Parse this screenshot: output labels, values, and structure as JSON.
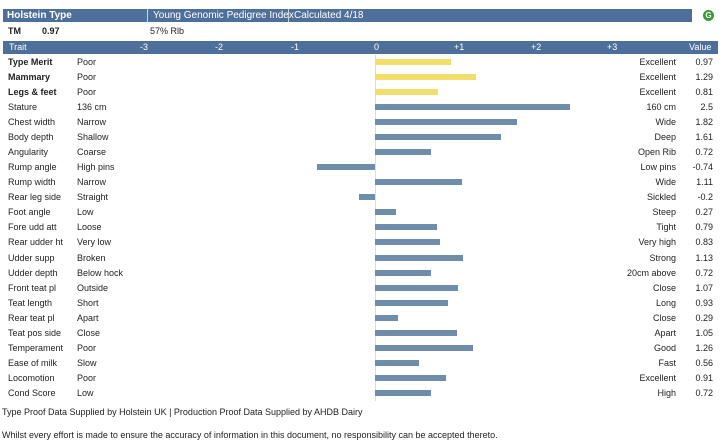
{
  "title_bar": {
    "breed": "Holstein Type",
    "index": "Young Genomic Pedigree Index",
    "calculated": "Calculated 4/18",
    "status_icon_glyph": "G",
    "status_icon": "genomic-status-icon"
  },
  "summary": {
    "label": "TM",
    "value": "0.97",
    "reliability": "57% Rlb"
  },
  "header": {
    "trait": "Trait",
    "value": "Value",
    "ticks": [
      "-3",
      "-2",
      "-1",
      "0",
      "+1",
      "+2",
      "+3"
    ]
  },
  "scale": {
    "min": -3,
    "max": 3
  },
  "traits": [
    {
      "name": "Type Merit",
      "low": "Poor",
      "high": "Excellent",
      "value": "0.97",
      "bold": true,
      "color": "#f2de68"
    },
    {
      "name": "Mammary",
      "low": "Poor",
      "high": "Excellent",
      "value": "1.29",
      "bold": true,
      "color": "#f2de68"
    },
    {
      "name": "Legs & feet",
      "low": "Poor",
      "high": "Excellent",
      "value": "0.81",
      "bold": true,
      "color": "#f2de68"
    },
    {
      "name": "Stature",
      "low": "136 cm",
      "high": "160 cm",
      "value": "2.5"
    },
    {
      "name": "Chest width",
      "low": "Narrow",
      "high": "Wide",
      "value": "1.82"
    },
    {
      "name": "Body depth",
      "low": "Shallow",
      "high": "Deep",
      "value": "1.61"
    },
    {
      "name": "Angularity",
      "low": "Coarse",
      "high": "Open Rib",
      "value": "0.72"
    },
    {
      "name": "Rump angle",
      "low": "High pins",
      "high": "Low pins",
      "value": "-0.74"
    },
    {
      "name": "Rump width",
      "low": "Narrow",
      "high": "Wide",
      "value": "1.11"
    },
    {
      "name": "Rear leg side",
      "low": "Straight",
      "high": "Sickled",
      "value": "-0.2"
    },
    {
      "name": "Foot angle",
      "low": "Low",
      "high": "Steep",
      "value": "0.27"
    },
    {
      "name": "Fore udd att",
      "low": "Loose",
      "high": "Tight",
      "value": "0.79"
    },
    {
      "name": "Rear udder ht",
      "low": "Very low",
      "high": "Very high",
      "value": "0.83"
    },
    {
      "name": "Udder supp",
      "low": "Broken",
      "high": "Strong",
      "value": "1.13"
    },
    {
      "name": "Udder depth",
      "low": "Below hock",
      "high": "20cm above",
      "value": "0.72"
    },
    {
      "name": "Front teat pl",
      "low": "Outside",
      "high": "Close",
      "value": "1.07"
    },
    {
      "name": "Teat length",
      "low": "Short",
      "high": "Long",
      "value": "0.93"
    },
    {
      "name": "Rear teat pl",
      "low": "Apart",
      "high": "Close",
      "value": "0.29"
    },
    {
      "name": "Teat pos side",
      "low": "Close",
      "high": "Apart",
      "value": "1.05"
    },
    {
      "name": "Temperament",
      "low": "Poor",
      "high": "Good",
      "value": "1.26"
    },
    {
      "name": "Ease of milk",
      "low": "Slow",
      "high": "Fast",
      "value": "0.56"
    },
    {
      "name": "Locomotion",
      "low": "Poor",
      "high": "Excellent",
      "value": "0.91"
    },
    {
      "name": "Cond Score",
      "low": "Low",
      "high": "High",
      "value": "0.72"
    }
  ],
  "colors": {
    "bar_default": "#6f8cab",
    "bar_composite": "#f2de68",
    "header_bg": "#4e6f99"
  },
  "footer": {
    "sources": "Type Proof Data Supplied by Holstein UK | Production Proof Data Supplied by AHDB Dairy",
    "disclaimer": "Whilst every effort is made to ensure the accuracy of information in this document, no responsibility can be accepted thereto."
  }
}
